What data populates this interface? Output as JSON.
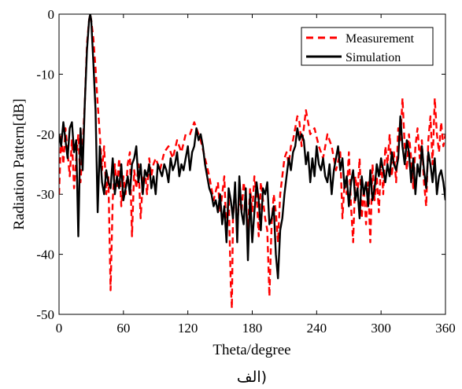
{
  "chart_data": {
    "type": "line",
    "xlabel": "Theta/degree",
    "ylabel": "Radiation Pattern[dB]",
    "xlim": [
      0,
      360
    ],
    "ylim": [
      -50,
      0
    ],
    "xticks": [
      0,
      60,
      120,
      180,
      240,
      300,
      360
    ],
    "yticks": [
      0,
      -10,
      -20,
      -30,
      -40,
      -50
    ],
    "grid": false,
    "legend_position": "top-right",
    "caption": "(الف",
    "series": [
      {
        "name": "Measurement",
        "style": "dashed",
        "color": "#ff0000",
        "x": [
          0,
          2,
          4,
          6,
          8,
          10,
          12,
          14,
          16,
          18,
          20,
          22,
          24,
          26,
          28,
          29,
          30,
          32,
          34,
          36,
          38,
          40,
          42,
          44,
          46,
          48,
          50,
          52,
          54,
          56,
          58,
          60,
          62,
          64,
          66,
          68,
          70,
          72,
          74,
          76,
          78,
          80,
          82,
          84,
          86,
          88,
          90,
          94,
          98,
          102,
          106,
          110,
          114,
          118,
          122,
          126,
          128,
          132,
          136,
          140,
          144,
          148,
          150,
          152,
          154,
          156,
          158,
          160,
          161,
          162,
          164,
          166,
          168,
          170,
          172,
          174,
          176,
          178,
          180,
          182,
          184,
          186,
          188,
          190,
          192,
          194,
          196,
          198,
          200,
          202,
          204,
          206,
          208,
          210,
          212,
          214,
          216,
          218,
          220,
          222,
          224,
          226,
          228,
          230,
          234,
          238,
          242,
          246,
          250,
          254,
          258,
          262,
          264,
          266,
          268,
          270,
          272,
          274,
          276,
          278,
          280,
          282,
          284,
          286,
          288,
          290,
          292,
          294,
          296,
          298,
          300,
          302,
          304,
          306,
          308,
          310,
          312,
          314,
          316,
          318,
          320,
          322,
          324,
          326,
          328,
          330,
          332,
          334,
          336,
          338,
          340,
          342,
          344,
          346,
          348,
          350,
          352,
          354,
          356,
          358,
          360
        ],
        "y": [
          -30,
          -20,
          -25,
          -19,
          -23,
          -27,
          -21,
          -29,
          -24,
          -20,
          -28,
          -22,
          -15,
          -5,
          -1,
          0,
          -1,
          -4,
          -9,
          -15,
          -20,
          -26,
          -22,
          -30,
          -27,
          -46,
          -31,
          -25,
          -29,
          -24,
          -32,
          -27,
          -30,
          -25,
          -23,
          -37,
          -26,
          -29,
          -25,
          -34,
          -28,
          -26,
          -30,
          -24,
          -27,
          -25,
          -24,
          -26,
          -23,
          -22,
          -24,
          -21,
          -23,
          -20,
          -20,
          -18,
          -19,
          -21,
          -24,
          -27,
          -31,
          -28,
          -33,
          -30,
          -27,
          -37,
          -30,
          -45,
          -49,
          -34,
          -29,
          -36,
          -30,
          -33,
          -28,
          -31,
          -36,
          -29,
          -33,
          -27,
          -30,
          -37,
          -28,
          -31,
          -34,
          -36,
          -47,
          -35,
          -30,
          -33,
          -38,
          -30,
          -27,
          -24,
          -23,
          -25,
          -22,
          -21,
          -19,
          -17,
          -18,
          -22,
          -19,
          -16,
          -20,
          -19,
          -22,
          -24,
          -20,
          -22,
          -26,
          -23,
          -34,
          -28,
          -30,
          -23,
          -32,
          -38,
          -27,
          -30,
          -24,
          -34,
          -29,
          -35,
          -28,
          -38,
          -25,
          -31,
          -27,
          -33,
          -24,
          -30,
          -22,
          -25,
          -20,
          -27,
          -23,
          -28,
          -19,
          -21,
          -14,
          -22,
          -26,
          -20,
          -24,
          -29,
          -22,
          -19,
          -24,
          -21,
          -28,
          -32,
          -21,
          -17,
          -25,
          -14,
          -20,
          -23,
          -18,
          -22,
          -20
        ]
      },
      {
        "name": "Simulation",
        "style": "solid",
        "color": "#000000",
        "x": [
          0,
          2,
          4,
          6,
          8,
          10,
          12,
          14,
          16,
          18,
          20,
          22,
          24,
          26,
          28,
          29,
          30,
          32,
          34,
          36,
          38,
          40,
          42,
          44,
          46,
          48,
          50,
          52,
          54,
          56,
          58,
          60,
          62,
          64,
          66,
          68,
          70,
          72,
          74,
          76,
          78,
          80,
          82,
          84,
          86,
          88,
          90,
          92,
          94,
          96,
          98,
          100,
          102,
          104,
          106,
          108,
          110,
          112,
          114,
          116,
          118,
          120,
          122,
          124,
          126,
          128,
          130,
          132,
          134,
          136,
          138,
          140,
          142,
          144,
          146,
          148,
          150,
          152,
          154,
          156,
          158,
          160,
          162,
          164,
          166,
          168,
          170,
          172,
          174,
          176,
          178,
          180,
          182,
          184,
          186,
          188,
          190,
          192,
          194,
          196,
          198,
          200,
          202,
          204,
          206,
          208,
          210,
          212,
          214,
          216,
          218,
          220,
          222,
          224,
          226,
          228,
          230,
          232,
          234,
          236,
          238,
          240,
          242,
          244,
          246,
          248,
          250,
          252,
          254,
          256,
          258,
          260,
          262,
          264,
          266,
          268,
          270,
          272,
          274,
          276,
          278,
          280,
          282,
          284,
          286,
          288,
          290,
          292,
          294,
          296,
          298,
          300,
          302,
          304,
          306,
          308,
          310,
          312,
          314,
          316,
          318,
          320,
          322,
          324,
          326,
          328,
          330,
          332,
          334,
          336,
          338,
          340,
          342,
          344,
          346,
          348,
          350,
          352,
          354,
          356,
          358,
          360
        ],
        "y": [
          -20,
          -22,
          -18,
          -21,
          -24,
          -19,
          -18,
          -23,
          -21,
          -37,
          -19,
          -26,
          -15,
          -6,
          -1,
          0,
          -1,
          -8,
          -16,
          -33,
          -22,
          -28,
          -30,
          -26,
          -28,
          -29,
          -24,
          -30,
          -27,
          -29,
          -25,
          -31,
          -29,
          -27,
          -30,
          -25,
          -24,
          -22,
          -28,
          -25,
          -30,
          -26,
          -27,
          -25,
          -29,
          -27,
          -30,
          -25,
          -26,
          -27,
          -25,
          -26,
          -28,
          -24,
          -26,
          -25,
          -23,
          -27,
          -25,
          -26,
          -24,
          -22,
          -26,
          -23,
          -22,
          -19,
          -21,
          -20,
          -22,
          -25,
          -27,
          -29,
          -30,
          -32,
          -31,
          -33,
          -30,
          -35,
          -32,
          -38,
          -29,
          -31,
          -34,
          -28,
          -38,
          -27,
          -33,
          -35,
          -29,
          -41,
          -30,
          -38,
          -33,
          -28,
          -31,
          -36,
          -29,
          -30,
          -28,
          -35,
          -34,
          -32,
          -40,
          -44,
          -36,
          -34,
          -30,
          -27,
          -24,
          -26,
          -23,
          -22,
          -19,
          -21,
          -20,
          -21,
          -25,
          -23,
          -28,
          -24,
          -27,
          -22,
          -25,
          -26,
          -24,
          -27,
          -28,
          -25,
          -30,
          -26,
          -24,
          -22,
          -26,
          -24,
          -29,
          -27,
          -32,
          -28,
          -26,
          -31,
          -29,
          -34,
          -27,
          -30,
          -28,
          -32,
          -26,
          -31,
          -29,
          -25,
          -27,
          -24,
          -26,
          -28,
          -25,
          -27,
          -23,
          -25,
          -26,
          -24,
          -17,
          -22,
          -25,
          -21,
          -23,
          -28,
          -24,
          -30,
          -25,
          -27,
          -22,
          -26,
          -29,
          -23,
          -25,
          -28,
          -24,
          -30,
          -27,
          -26,
          -28,
          -31
        ]
      }
    ]
  }
}
